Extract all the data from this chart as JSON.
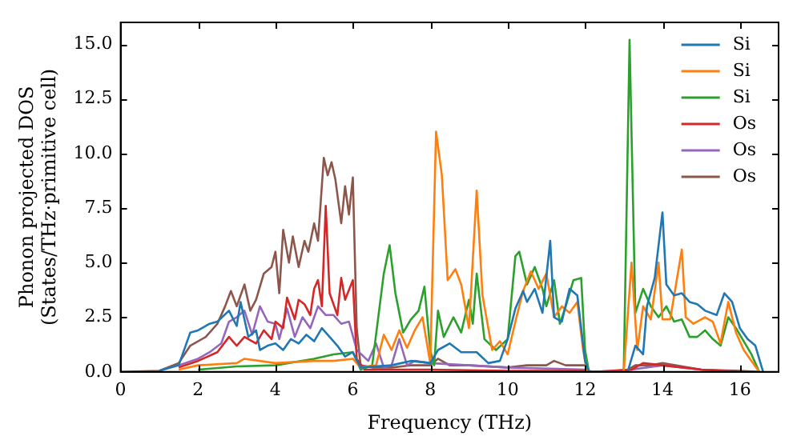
{
  "chart_data": {
    "type": "line",
    "xlabel": "Frequency (THz)",
    "ylabel": "Phonon projected DOS\n(States/THz·primitive cell)",
    "xlim": [
      0,
      17
    ],
    "ylim": [
      0,
      16
    ],
    "xticks": [
      0,
      2,
      4,
      6,
      8,
      10,
      12,
      14,
      16
    ],
    "yticks": [
      {
        "value": 0,
        "label": "0.0"
      },
      2.5,
      {
        "value": 5,
        "label": "5.0"
      },
      7.5,
      {
        "value": 10,
        "label": "10.0"
      },
      12.5,
      {
        "value": 15,
        "label": "15.0"
      }
    ],
    "grid": false,
    "legend": "top right",
    "marker": "none",
    "line_style": "solid",
    "series": [
      {
        "name": "Si",
        "color": "#1f77b4",
        "x": [
          1,
          1.5,
          1.8,
          2,
          2.3,
          2.5,
          2.8,
          3,
          3.1,
          3.3,
          3.5,
          3.6,
          3.8,
          4,
          4.2,
          4.4,
          4.6,
          4.8,
          5,
          5.2,
          5.4,
          5.6,
          5.8,
          6,
          6.2,
          7,
          7.5,
          8,
          8.2,
          8.5,
          8.8,
          9.2,
          9.5,
          9.8,
          10,
          10.2,
          10.4,
          10.5,
          10.7,
          10.9,
          11.1,
          11.2,
          11.4,
          11.6,
          11.8,
          12,
          12.1,
          13.1,
          13.3,
          13.5,
          13.6,
          13.8,
          14,
          14.1,
          14.3,
          14.5,
          14.7,
          14.9,
          15.1,
          15.4,
          15.6,
          15.8,
          16,
          16.2,
          16.4,
          16.6
        ],
        "values": [
          0.05,
          0.3,
          1.8,
          1.9,
          2.2,
          2.3,
          2.8,
          2.1,
          3.2,
          1.6,
          1.9,
          1,
          1.2,
          1.3,
          1,
          1.5,
          1.3,
          1.7,
          1.4,
          2,
          1.6,
          1.2,
          0.7,
          0.9,
          0.2,
          0.3,
          0.5,
          0.4,
          1,
          1.3,
          0.9,
          0.9,
          0.4,
          0.5,
          1.5,
          2.9,
          3.7,
          3.2,
          3.8,
          2.7,
          6,
          2.5,
          2.3,
          3.8,
          3.5,
          0.5,
          0,
          0,
          1.2,
          0.8,
          3,
          4.3,
          7.3,
          4,
          3.5,
          3.6,
          3.2,
          3.1,
          2.8,
          2.6,
          3.6,
          3.2,
          2,
          1.5,
          1.2,
          0
        ]
      },
      {
        "name": "Si",
        "color": "#ff7f0e",
        "x": [
          1.5,
          2,
          3,
          3.2,
          4,
          5,
          5.5,
          6,
          6.2,
          6.6,
          6.8,
          7,
          7.2,
          7.4,
          7.6,
          7.8,
          8,
          8.15,
          8.3,
          8.45,
          8.65,
          8.8,
          9,
          9.2,
          9.35,
          9.6,
          9.8,
          10,
          10.2,
          10.4,
          10.6,
          10.8,
          11,
          11.2,
          11.4,
          11.6,
          11.8,
          11.95,
          12.05,
          13,
          13.2,
          13.35,
          13.5,
          13.7,
          13.9,
          14,
          14.2,
          14.5,
          14.6,
          14.8,
          15.1,
          15.3,
          15.5,
          15.7,
          15.9,
          16.1,
          16.3,
          16.5
        ],
        "values": [
          0.1,
          0.3,
          0.4,
          0.6,
          0.4,
          0.5,
          0.5,
          0.6,
          0.2,
          0.3,
          1.7,
          1,
          1.9,
          1.1,
          1.9,
          2.5,
          0.4,
          11,
          9,
          4.2,
          4.7,
          4,
          2,
          8.3,
          3.5,
          1,
          1.4,
          0.8,
          2.3,
          3.7,
          4.6,
          3.8,
          4.5,
          2.5,
          3,
          2.7,
          3.2,
          1,
          0,
          0,
          5,
          1,
          3,
          2.4,
          5,
          2.4,
          2.4,
          5.6,
          2.5,
          2.2,
          2.5,
          2.3,
          1.3,
          3.2,
          1.8,
          1,
          0.5,
          0
        ]
      },
      {
        "name": "Si",
        "color": "#2ca02c",
        "x": [
          2,
          3,
          4,
          5,
          5.5,
          6,
          6.2,
          6.5,
          6.8,
          6.95,
          7.1,
          7.3,
          7.5,
          7.7,
          7.85,
          8,
          8.1,
          8.2,
          8.35,
          8.6,
          8.8,
          9,
          9.1,
          9.2,
          9.4,
          9.7,
          10,
          10.2,
          10.3,
          10.5,
          10.7,
          10.9,
          11,
          11.2,
          11.35,
          11.5,
          11.7,
          11.9,
          12,
          12.1,
          13,
          13.15,
          13.3,
          13.5,
          13.7,
          13.9,
          14.1,
          14.3,
          14.5,
          14.7,
          14.9,
          15.1,
          15.3,
          15.5,
          15.7,
          15.9,
          16.1,
          16.3,
          16.5
        ],
        "values": [
          0.1,
          0.25,
          0.3,
          0.6,
          0.8,
          0.9,
          0.1,
          0.3,
          4.5,
          5.8,
          3.6,
          1.8,
          2.4,
          2.8,
          3.9,
          1,
          0.3,
          2.8,
          1.6,
          2.5,
          1.8,
          3.3,
          2.2,
          4.5,
          1.5,
          1,
          1.5,
          5.3,
          5.5,
          4,
          4.8,
          3.8,
          3,
          4.2,
          2.2,
          3,
          4.2,
          4.3,
          1,
          0,
          0,
          15.2,
          2.7,
          3.8,
          3,
          2.5,
          3,
          2.3,
          2.4,
          1.6,
          1.6,
          1.9,
          1.5,
          1.2,
          2.5,
          2,
          1.4,
          0.8,
          0
        ]
      },
      {
        "name": "Os",
        "color": "#d62728",
        "x": [
          1.5,
          2,
          2.5,
          2.8,
          3,
          3.2,
          3.5,
          3.7,
          3.9,
          4,
          4.2,
          4.3,
          4.5,
          4.6,
          4.75,
          4.9,
          5,
          5.1,
          5.2,
          5.3,
          5.4,
          5.6,
          5.7,
          5.8,
          6,
          6.1,
          6.3,
          7,
          8,
          10,
          12,
          12.2,
          13.2,
          13.5,
          14,
          15,
          16
        ],
        "values": [
          0.2,
          0.5,
          0.9,
          1.6,
          1.2,
          1.6,
          1.3,
          1.9,
          1.5,
          2.3,
          2,
          3.4,
          2.4,
          3.3,
          3.1,
          2.6,
          3.8,
          4.2,
          3,
          7.6,
          3.6,
          2.6,
          4.3,
          3.3,
          4.2,
          0.6,
          0.1,
          0.1,
          0.1,
          0.05,
          0.05,
          0,
          0.1,
          0.4,
          0.3,
          0.1,
          0
        ]
      },
      {
        "name": "Os",
        "color": "#9467bd",
        "x": [
          1.5,
          2,
          2.3,
          2.6,
          2.8,
          3,
          3.2,
          3.4,
          3.6,
          3.8,
          4,
          4.1,
          4.3,
          4.5,
          4.7,
          4.9,
          5.1,
          5.3,
          5.5,
          5.7,
          5.9,
          6.1,
          6.4,
          6.6,
          6.8,
          7,
          7.2,
          7.4,
          7.6,
          8,
          9,
          10,
          12,
          12.2,
          13.2,
          14,
          15,
          16
        ],
        "values": [
          0.3,
          0.6,
          0.9,
          1.3,
          2.3,
          2.5,
          2.8,
          1.7,
          3,
          2.3,
          2.2,
          1.5,
          2.9,
          1.6,
          2.5,
          2,
          3,
          2.6,
          2.6,
          2.2,
          2.3,
          1,
          0.5,
          1.3,
          0.2,
          0.3,
          1.5,
          0.3,
          0.5,
          0.4,
          0.3,
          0.2,
          0.1,
          0,
          0.1,
          0.3,
          0.1,
          0
        ]
      },
      {
        "name": "Os",
        "color": "#8c564b",
        "x": [
          0,
          1,
          1.5,
          1.8,
          2.2,
          2.5,
          2.7,
          2.85,
          3,
          3.2,
          3.35,
          3.5,
          3.7,
          3.9,
          4,
          4.1,
          4.2,
          4.35,
          4.45,
          4.6,
          4.75,
          4.85,
          5,
          5.1,
          5.25,
          5.35,
          5.45,
          5.55,
          5.7,
          5.8,
          5.9,
          6,
          6.1,
          6.2,
          6.5,
          7,
          7.5,
          8,
          8.2,
          8.5,
          9,
          10,
          10.5,
          11,
          11.2,
          11.5,
          12,
          12.1,
          13,
          13.3,
          13.7,
          14,
          15,
          16,
          16.5
        ],
        "values": [
          0,
          0.05,
          0.4,
          1.2,
          1.6,
          2.2,
          3,
          3.7,
          3,
          4,
          2.8,
          3.3,
          4.5,
          4.8,
          5.5,
          3.6,
          6.5,
          5,
          6.2,
          4.8,
          6,
          5.5,
          6.8,
          6,
          9.8,
          9,
          9.6,
          8.8,
          6.8,
          8.5,
          7.2,
          8.9,
          2,
          0.3,
          0.2,
          0.2,
          0.3,
          0.3,
          0.6,
          0.3,
          0.3,
          0.2,
          0.3,
          0.3,
          0.5,
          0.3,
          0.3,
          0,
          0,
          0.3,
          0.3,
          0.4,
          0.1,
          0.05,
          0
        ]
      }
    ]
  }
}
